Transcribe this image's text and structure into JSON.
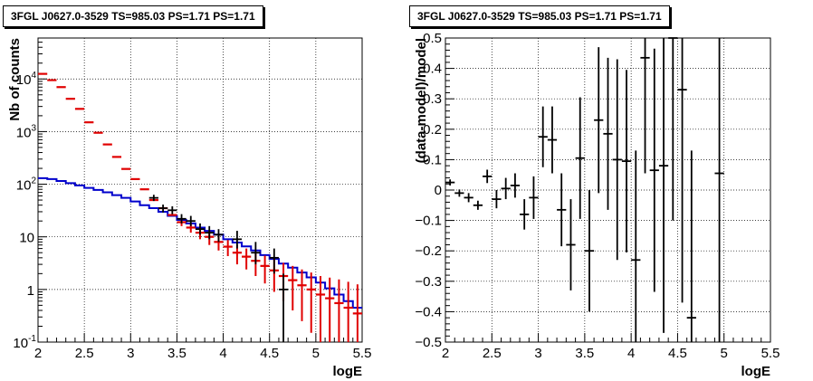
{
  "chart_data": [
    {
      "type": "step",
      "title": "3FGL J0627.0-3529 TS=985.03 PS=1.71 PS=1.71",
      "xlabel": "logE",
      "ylabel": "Nb of counts",
      "xlim": [
        2,
        5.5
      ],
      "ylim": [
        0.1,
        60000
      ],
      "yscale": "log",
      "grid": true,
      "x_ticks": [
        "2",
        "2.5",
        "3",
        "3.5",
        "4",
        "4.5",
        "5",
        "5.5"
      ],
      "y_ticks": [
        {
          "value": 0.1,
          "label": "10",
          "exp": "-1"
        },
        {
          "value": 1,
          "label": "1",
          "exp": ""
        },
        {
          "value": 10,
          "label": "10",
          "exp": ""
        },
        {
          "value": 100,
          "label": "10",
          "exp": "2"
        },
        {
          "value": 1000,
          "label": "10",
          "exp": "3"
        },
        {
          "value": 10000,
          "label": "10",
          "exp": "4"
        }
      ],
      "series": [
        {
          "role": "model-total",
          "color": "#e00000",
          "x": [
            2.05,
            2.15,
            2.25,
            2.35,
            2.45,
            2.55,
            2.65,
            2.75,
            2.85,
            2.95,
            3.05,
            3.15,
            3.25,
            3.35,
            3.45,
            3.55,
            3.65,
            3.75,
            3.85,
            3.95,
            4.05,
            4.15,
            4.25,
            4.35,
            4.45,
            4.55,
            4.65,
            4.75,
            4.85,
            4.95,
            5.05,
            5.15,
            5.25,
            5.35,
            5.45
          ],
          "y": [
            12500,
            9500,
            7000,
            4200,
            2700,
            1500,
            950,
            570,
            330,
            195,
            125,
            80,
            50,
            35,
            26,
            19,
            15,
            12,
            10,
            8,
            6.5,
            5,
            4.2,
            3.5,
            2.8,
            2.3,
            1.8,
            1.5,
            1.2,
            1,
            0.8,
            0.68,
            0.55,
            0.45,
            0.35
          ],
          "err_low": [
            0,
            0,
            0,
            0,
            0,
            0,
            0,
            0,
            0,
            0,
            0,
            0,
            0,
            0,
            0,
            3,
            3,
            3,
            3,
            2.5,
            2.2,
            2,
            1.8,
            1.7,
            1.5,
            1.4,
            1.2,
            1.1,
            0.95,
            0.85,
            0.75,
            0.65,
            0.55,
            0.45,
            0.35
          ],
          "err_high": [
            0,
            0,
            0,
            0,
            0,
            0,
            0,
            0,
            0,
            0,
            0,
            0,
            0,
            0,
            0,
            3,
            3,
            3,
            3,
            2.5,
            2.2,
            2,
            1.8,
            1.7,
            1.6,
            1.5,
            1.4,
            1.3,
            1.2,
            1.1,
            1,
            1,
            1,
            0.95,
            0.9
          ]
        },
        {
          "role": "data",
          "color": "#000000",
          "x": [
            3.25,
            3.35,
            3.45,
            3.55,
            3.65,
            3.75,
            3.85,
            3.95,
            4.15,
            4.35,
            4.55,
            4.65
          ],
          "y": [
            55,
            35,
            32,
            22,
            20,
            14,
            12,
            11,
            9,
            5,
            4,
            1
          ],
          "err_low": [
            7,
            6,
            5,
            4,
            4,
            3,
            3,
            3,
            3,
            2,
            2,
            0.9
          ],
          "err_high": [
            8,
            6,
            6,
            5,
            5,
            4,
            4,
            3,
            4,
            3,
            2,
            1
          ]
        },
        {
          "role": "background",
          "color": "#0000cc",
          "x": [
            2.05,
            2.15,
            2.25,
            2.35,
            2.45,
            2.55,
            2.65,
            2.75,
            2.85,
            2.95,
            3.05,
            3.15,
            3.25,
            3.35,
            3.45,
            3.55,
            3.65,
            3.75,
            3.85,
            3.95,
            4.05,
            4.15,
            4.25,
            4.35,
            4.45,
            4.55,
            4.65,
            4.75,
            4.85,
            4.95,
            5.05,
            5.15,
            5.25,
            5.35,
            5.45
          ],
          "y": [
            130,
            125,
            115,
            105,
            95,
            85,
            78,
            70,
            62,
            55,
            47,
            40,
            35,
            30,
            25,
            21,
            18,
            15,
            13,
            11,
            9,
            7.8,
            6.6,
            5.5,
            4.5,
            3.8,
            3.1,
            2.6,
            2.1,
            1.7,
            1.35,
            1.05,
            0.8,
            0.6,
            0.45
          ]
        }
      ]
    },
    {
      "type": "errorbar",
      "title": "3FGL J0627.0-3529 TS=985.03 PS=1.71 PS=1.71",
      "xlabel": "logE",
      "ylabel": "(data-model)/model",
      "xlim": [
        2,
        5.5
      ],
      "ylim": [
        -0.5,
        0.5
      ],
      "grid": true,
      "x_ticks": [
        "2",
        "2.5",
        "3",
        "3.5",
        "4",
        "4.5",
        "5",
        "5.5"
      ],
      "y_ticks": [
        "−0.5",
        "−0.4",
        "−0.3",
        "−0.2",
        "−0.1",
        "0",
        "0.1",
        "0.2",
        "0.3",
        "0.4",
        "0.5"
      ],
      "series": [
        {
          "color": "#000000",
          "x": [
            2.05,
            2.15,
            2.25,
            2.35,
            2.45,
            2.55,
            2.65,
            2.75,
            2.85,
            2.95,
            3.05,
            3.15,
            3.25,
            3.35,
            3.45,
            3.55,
            3.65,
            3.75,
            3.85,
            3.95,
            4.05,
            4.15,
            4.25,
            4.35,
            4.45,
            4.55,
            4.65,
            4.95
          ],
          "y": [
            0.025,
            -0.01,
            -0.025,
            -0.05,
            0.045,
            -0.03,
            0.005,
            0.015,
            -0.08,
            -0.025,
            0.175,
            0.165,
            -0.065,
            -0.18,
            0.105,
            -0.2,
            0.23,
            0.185,
            0.1,
            0.095,
            -0.23,
            0.435,
            0.065,
            0.08,
            0.5,
            0.33,
            -0.42,
            0.055
          ],
          "err": [
            0.01,
            0.012,
            0.015,
            0.015,
            0.022,
            0.03,
            0.035,
            0.04,
            0.05,
            0.07,
            0.1,
            0.11,
            0.12,
            0.15,
            0.2,
            0.2,
            0.24,
            0.25,
            0.33,
            0.3,
            0.36,
            0.38,
            0.4,
            0.55,
            0.6,
            0.7,
            0.55,
            0.8
          ]
        }
      ]
    }
  ]
}
